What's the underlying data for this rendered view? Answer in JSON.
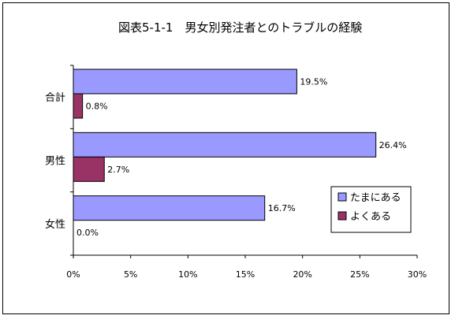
{
  "chart_data": {
    "type": "bar",
    "orientation": "horizontal",
    "title": "図表5-1-1　男女別発注者とのトラブルの経験",
    "categories": [
      "合計",
      "男性",
      "女性"
    ],
    "series": [
      {
        "name": "たまにある",
        "values": [
          19.5,
          26.4,
          16.7
        ],
        "color": "#9999ff"
      },
      {
        "name": "よくある",
        "values": [
          0.8,
          2.7,
          0.0
        ],
        "color": "#993366"
      }
    ],
    "value_labels": [
      [
        "19.5%",
        "26.4%",
        "16.7%"
      ],
      [
        "0.8%",
        "2.7%",
        "0.0%"
      ]
    ],
    "xlim": [
      0,
      30
    ],
    "x_ticks": [
      0,
      5,
      10,
      15,
      20,
      25,
      30
    ],
    "x_tick_labels": [
      "0%",
      "5%",
      "10%",
      "15%",
      "20%",
      "25%",
      "30%"
    ],
    "grid": false,
    "legend_position": "right"
  }
}
